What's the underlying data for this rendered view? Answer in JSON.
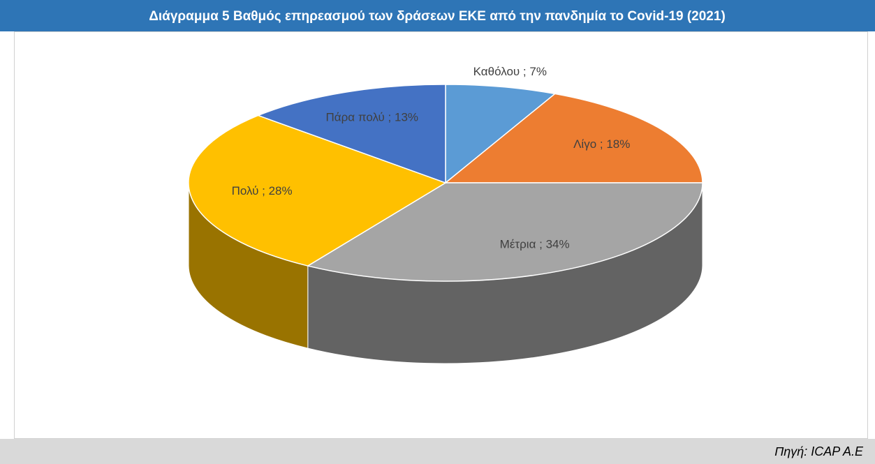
{
  "chart_data": {
    "type": "pie3d",
    "title": "Διάγραμμα 5 Βαθμός επηρεασμού των δράσεων ΕΚΕ από την πανδημία το Covid-19  (2021)",
    "values": [
      7,
      18,
      34,
      28,
      13
    ],
    "value_labels": [
      "Καθόλου ; 7%",
      "Λίγο ; 18%",
      "Μέτρια ; 34%",
      "Πολύ ; 28%",
      "Πάρα πολύ ; 13%"
    ],
    "colors": [
      "#5b9bd5",
      "#ed7d31",
      "#a5a5a5",
      "#ffc000",
      "#4472c4"
    ],
    "source": "Πηγή: ICAP A.E"
  }
}
